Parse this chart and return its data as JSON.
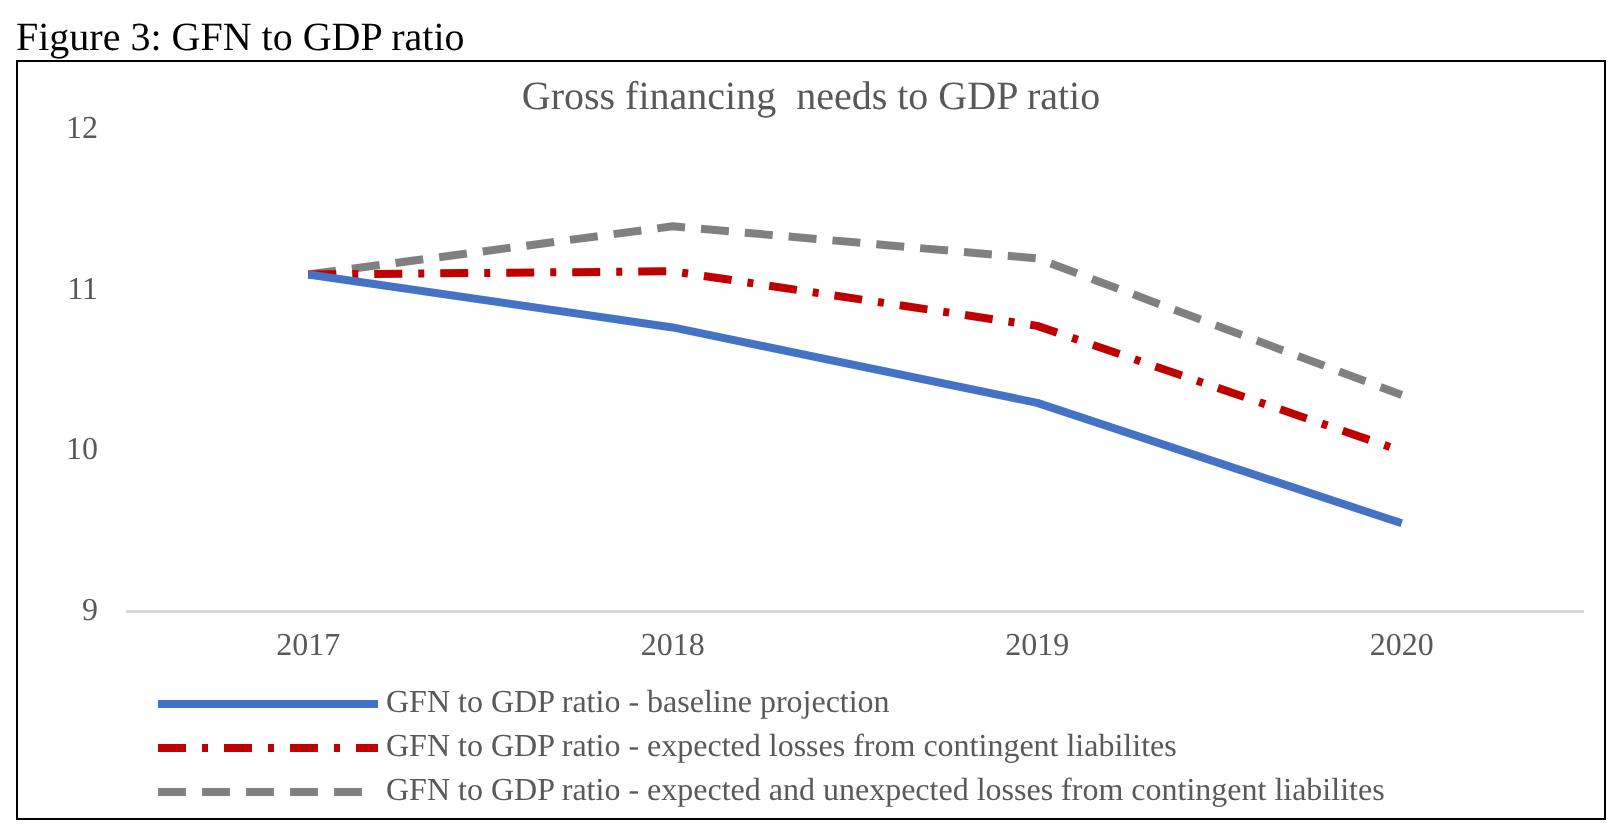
{
  "chart_data": {
    "type": "line",
    "title": "Gross financing  needs to GDP ratio",
    "annotations": [
      "Figure 3: GFN to GDP ratio"
    ],
    "categories": [
      "2017",
      "2018",
      "2019",
      "2020"
    ],
    "series": [
      {
        "name": "GFN to GDP ratio - baseline projection",
        "color": "#4472c4",
        "line_style": "solid",
        "values": [
          11.1,
          10.77,
          10.3,
          9.55
        ]
      },
      {
        "name": "GFN to GDP ratio - expected losses from contingent liabilites",
        "color": "#c00000",
        "line_style": "dashdot",
        "values": [
          11.1,
          11.12,
          10.78,
          10.0
        ]
      },
      {
        "name": "GFN to GDP ratio - expected and unexpected losses from contingent liabilites",
        "color": "#808080",
        "line_style": "dashed",
        "values": [
          11.1,
          11.4,
          11.2,
          10.35
        ]
      }
    ],
    "ylim": [
      9,
      12
    ],
    "yticks": [
      9,
      10,
      11,
      12
    ],
    "grid": false,
    "legend": "bottom",
    "marker": "none"
  }
}
